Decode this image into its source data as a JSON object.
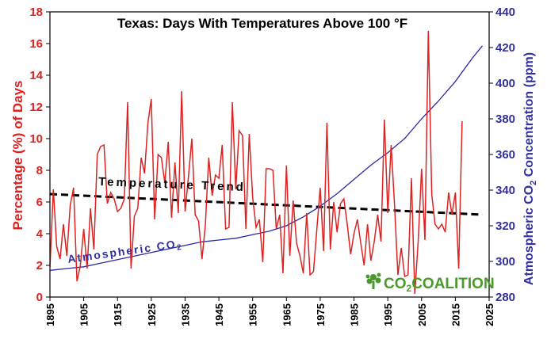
{
  "chart_data": {
    "type": "line",
    "title": "Texas: Days With Temperatures Above 100 °F",
    "ylabel_left": "Percentage (%) of Days",
    "ylabel_right_prefix": "Atmospheric CO",
    "ylabel_right_sub": "2",
    "ylabel_right_suffix": " Concentration (ppm)",
    "xlim": [
      1895,
      2025
    ],
    "ylim_left": [
      0,
      18
    ],
    "ylim_right": [
      280,
      440
    ],
    "x_ticks": [
      1895,
      1905,
      1915,
      1925,
      1935,
      1945,
      1955,
      1965,
      1975,
      1985,
      1995,
      2005,
      2015,
      2025
    ],
    "y_ticks_left": [
      0,
      2,
      4,
      6,
      8,
      10,
      12,
      14,
      16,
      18
    ],
    "y_ticks_right": [
      280,
      300,
      320,
      340,
      360,
      380,
      400,
      420,
      440
    ],
    "grid": false,
    "annotations": {
      "trend_label": "Temperature Trend",
      "co2_label_prefix": "Atmospheric CO",
      "co2_label_sub": "2"
    },
    "logo": {
      "prefix": "CO",
      "sub": "2",
      "suffix": "COALITION"
    },
    "colors": {
      "temperature": "#dd2222",
      "co2": "#2828a8",
      "trend": "#000000",
      "left_axis_text": "#e02020",
      "right_axis_text": "#3030a0",
      "logo_green": "#4a9a2a"
    },
    "series": [
      {
        "key": "temperature",
        "axis": "left",
        "x_start": 1895,
        "values": [
          1.9,
          6.8,
          3.2,
          2.4,
          4.6,
          2.6,
          5.8,
          6.9,
          1.0,
          2.0,
          4.3,
          1.8,
          5.6,
          3.0,
          9.0,
          9.5,
          9.6,
          5.9,
          6.6,
          6.2,
          5.4,
          5.6,
          6.2,
          12.3,
          1.8,
          5.1,
          5.6,
          8.8,
          7.8,
          11.0,
          12.5,
          4.9,
          9.0,
          8.8,
          7.2,
          9.8,
          5.0,
          8.5,
          5.3,
          13.0,
          5.4,
          7.6,
          10.0,
          5.2,
          4.8,
          2.4,
          4.5,
          8.8,
          6.4,
          7.7,
          7.5,
          9.6,
          4.3,
          4.4,
          12.3,
          6.8,
          10.5,
          10.2,
          4.3,
          10.3,
          6.3,
          4.4,
          4.9,
          2.2,
          8.1,
          8.1,
          8.0,
          4.3,
          5.2,
          1.5,
          8.3,
          2.6,
          6.1,
          3.4,
          2.6,
          1.5,
          5.3,
          1.4,
          1.6,
          4.3,
          6.9,
          2.9,
          11.0,
          3.0,
          6.0,
          4.1,
          5.9,
          6.2,
          4.6,
          2.7,
          4.0,
          4.9,
          3.4,
          2.0,
          4.6,
          2.3,
          3.5,
          5.2,
          3.5,
          11.2,
          5.3,
          9.6,
          5.8,
          1.4,
          3.1,
          1.3,
          1.4,
          7.5,
          0.2,
          3.5,
          8.1,
          3.6,
          16.8,
          6.5,
          4.6,
          4.3,
          4.6,
          4.1,
          6.6,
          5.2,
          6.6,
          1.8,
          11.1
        ]
      },
      {
        "key": "co2",
        "axis": "right",
        "x": [
          1895,
          1900,
          1905,
          1910,
          1915,
          1920,
          1925,
          1930,
          1935,
          1940,
          1945,
          1950,
          1955,
          1960,
          1965,
          1970,
          1975,
          1980,
          1985,
          1990,
          1995,
          2000,
          2005,
          2010,
          2015,
          2020,
          2023
        ],
        "values": [
          295,
          296,
          297,
          299,
          301,
          303,
          305,
          307,
          309,
          311,
          312,
          313,
          315,
          317,
          320,
          325,
          331,
          338,
          346,
          354,
          361,
          369,
          380,
          390,
          401,
          414,
          421
        ]
      },
      {
        "key": "trend",
        "axis": "left",
        "x": [
          1895,
          2023
        ],
        "values": [
          6.5,
          5.2
        ]
      }
    ]
  }
}
